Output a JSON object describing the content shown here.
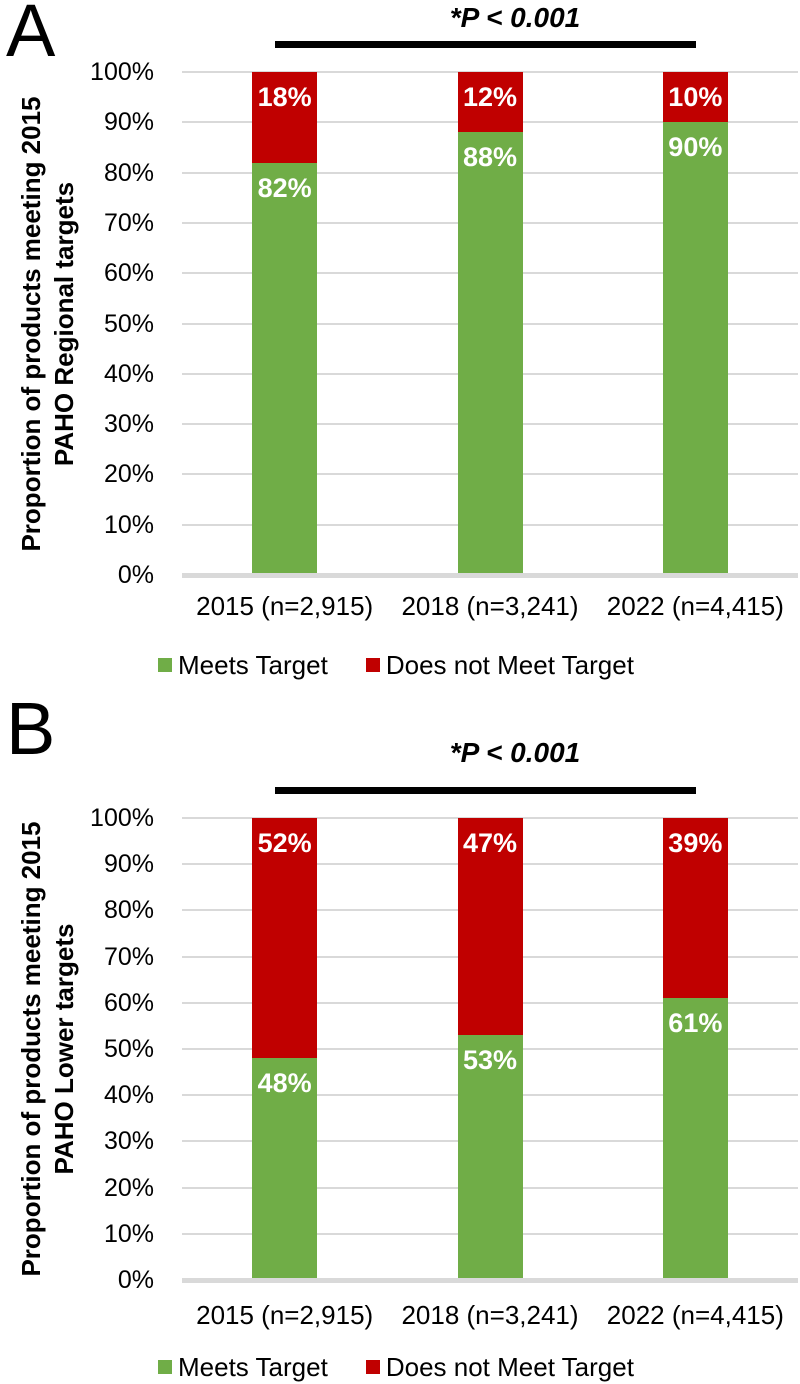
{
  "figure_title": "",
  "colors": {
    "meets_target": "#70AD47",
    "does_not_meet_target": "#C00000",
    "gridline": "#D9D9D9",
    "axis_line": "#D9D9D9",
    "annotation_line": "#000000",
    "data_label_text": "#FFFFFF"
  },
  "chart_data": [
    {
      "type": "bar",
      "stacked": true,
      "panel_letter": "A",
      "annotation": "*P < 0.001",
      "ylabel_line1": "Proportion of products meeting 2015",
      "ylabel_line2": "PAHO Regional targets",
      "categories": [
        "2015 (n=2,915)",
        "2018 (n=3,241)",
        "2022 (n=4,415)"
      ],
      "series": [
        {
          "name": "Meets Target",
          "color": "#70AD47",
          "values": [
            82,
            88,
            90
          ],
          "labels": [
            "82%",
            "88%",
            "90%"
          ]
        },
        {
          "name": "Does not Meet Target",
          "color": "#C00000",
          "values": [
            18,
            12,
            10
          ],
          "labels": [
            "18%",
            "12%",
            "10%"
          ]
        }
      ],
      "y_ticks": [
        "100%",
        "90%",
        "80%",
        "70%",
        "60%",
        "50%",
        "40%",
        "30%",
        "20%",
        "10%",
        "0%"
      ],
      "ylim": [
        0,
        100
      ],
      "grid": true,
      "legend_position": "bottom"
    },
    {
      "type": "bar",
      "stacked": true,
      "panel_letter": "B",
      "annotation": "*P < 0.001",
      "ylabel_line1": "Proportion of products meeting 2015",
      "ylabel_line2": "PAHO Lower targets",
      "categories": [
        "2015 (n=2,915)",
        "2018 (n=3,241)",
        "2022 (n=4,415)"
      ],
      "series": [
        {
          "name": "Meets Target",
          "color": "#70AD47",
          "values": [
            48,
            53,
            61
          ],
          "labels": [
            "48%",
            "53%",
            "61%"
          ]
        },
        {
          "name": "Does not Meet Target",
          "color": "#C00000",
          "values": [
            52,
            47,
            39
          ],
          "labels": [
            "52%",
            "47%",
            "39%"
          ]
        }
      ],
      "y_ticks": [
        "100%",
        "90%",
        "80%",
        "70%",
        "60%",
        "50%",
        "40%",
        "30%",
        "20%",
        "10%",
        "0%"
      ],
      "ylim": [
        0,
        100
      ],
      "grid": true,
      "legend_position": "bottom"
    }
  ]
}
